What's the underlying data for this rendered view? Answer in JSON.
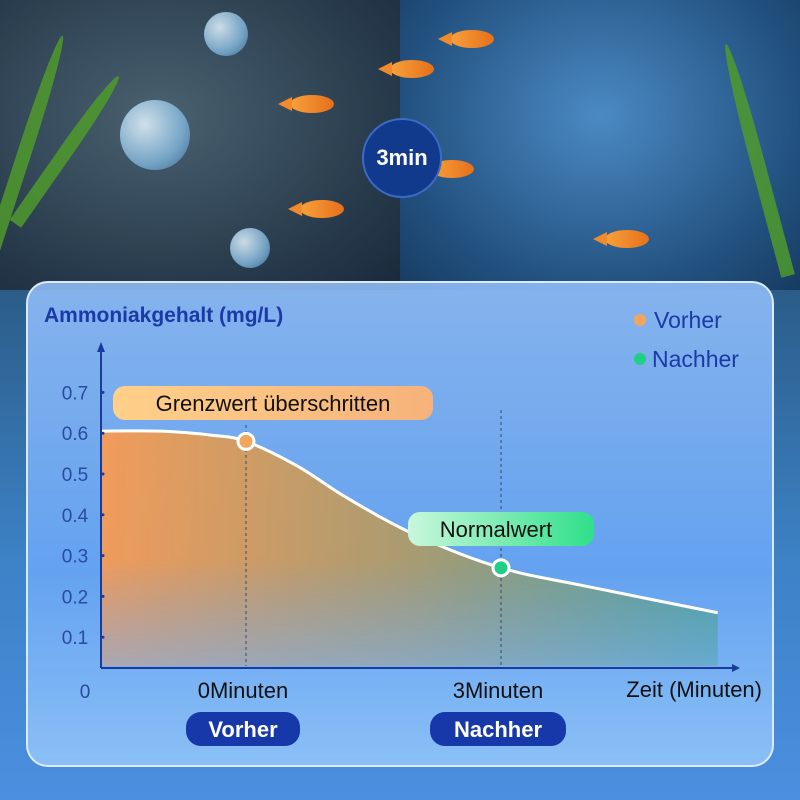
{
  "badge": {
    "label": "3min"
  },
  "chart_data": {
    "type": "area",
    "title": "",
    "ylabel": "Ammoniakgehalt (mg/L)",
    "xlabel": "Zeit (Minuten)",
    "ylim": [
      0,
      0.8
    ],
    "yticks": [
      "0.1",
      "0.2",
      "0.3",
      "0.4",
      "0.5",
      "0.6",
      "0.7"
    ],
    "y_zero_label": "0",
    "x_ticks": [
      {
        "x": 0,
        "label": "0Minuten",
        "tag": "Vorher"
      },
      {
        "x": 3,
        "label": "3Minuten",
        "tag": "Nachher"
      }
    ],
    "curve": [
      [
        -1.7,
        0.605
      ],
      [
        -1,
        0.605
      ],
      [
        -0.4,
        0.595
      ],
      [
        0,
        0.58
      ],
      [
        0.6,
        0.52
      ],
      [
        1.2,
        0.44
      ],
      [
        2,
        0.35
      ],
      [
        3,
        0.27
      ],
      [
        4,
        0.225
      ],
      [
        5.55,
        0.16
      ]
    ],
    "markers": [
      {
        "x": 0,
        "y": 0.58,
        "series": "Vorher",
        "annotation": "Grenzwert überschritten",
        "color": "#f4a55c"
      },
      {
        "x": 3,
        "y": 0.27,
        "series": "Nachher",
        "annotation": "Normalwert",
        "color": "#1fcf86"
      }
    ],
    "legend": {
      "placement": "top-right",
      "entries": [
        {
          "name": "Vorher",
          "color": "#f4a55c"
        },
        {
          "name": "Nachher",
          "color": "#1fcf86"
        }
      ]
    },
    "grid": false
  }
}
